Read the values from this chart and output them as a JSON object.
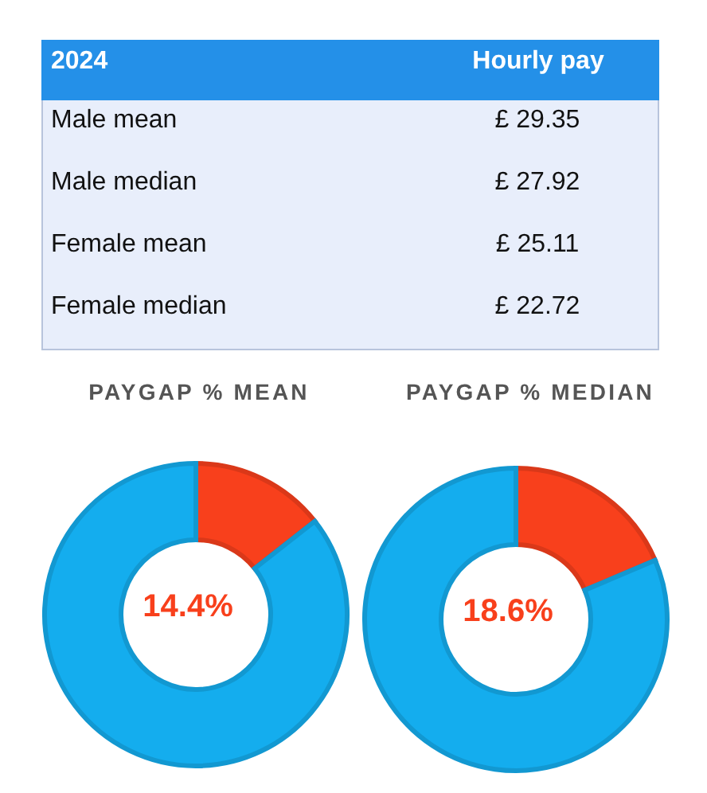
{
  "chart_data": [
    {
      "type": "other",
      "annotations": [
        "2024",
        "Hourly pay"
      ],
      "categories": [
        "Male mean",
        "Male median",
        "Female mean",
        "Female median"
      ],
      "value_labels": [
        "£ 29.35",
        "£ 27.92",
        "£ 25.11",
        "£ 22.72"
      ]
    },
    {
      "type": "donut",
      "title": "PAYGAP % MEAN",
      "categories": [
        null,
        null
      ],
      "values": [
        14.4,
        85.6
      ],
      "colors": [
        "#f8401c",
        "#14adee"
      ],
      "annotations": [
        "14.4%"
      ]
    },
    {
      "type": "donut",
      "title": "PAYGAP % MEDIAN",
      "categories": [
        null,
        null
      ],
      "values": [
        18.6,
        81.4
      ],
      "colors": [
        "#f8401c",
        "#14adee"
      ],
      "annotations": [
        "18.6%"
      ]
    }
  ]
}
